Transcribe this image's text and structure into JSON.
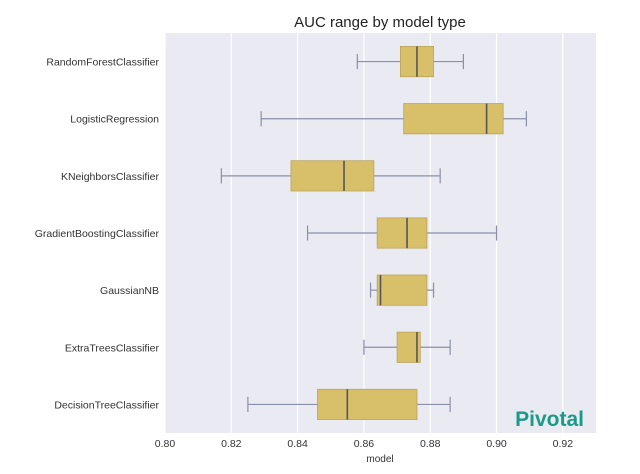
{
  "chart_data": {
    "type": "box",
    "orientation": "horizontal",
    "title": "AUC range by model type",
    "xlabel": "model",
    "ylabel": "",
    "xlim": [
      0.8,
      0.93
    ],
    "xticks": [
      0.8,
      0.82,
      0.84,
      0.86,
      0.88,
      0.9,
      0.92
    ],
    "xtick_labels": [
      "0.80",
      "0.82",
      "0.84",
      "0.86",
      "0.88",
      "0.90",
      "0.92"
    ],
    "grid": true,
    "background": "#eaeaf2",
    "box_color": "#d8c06a",
    "line_color": "#555555",
    "whisker_color": "#8c8fa8",
    "categories": [
      "RandomForestClassifier",
      "LogisticRegression",
      "KNeighborsClassifier",
      "GradientBoostingClassifier",
      "GaussianNB",
      "ExtraTreesClassifier",
      "DecisionTreeClassifier"
    ],
    "boxes": [
      {
        "min": 0.858,
        "q1": 0.871,
        "median": 0.876,
        "q3": 0.881,
        "max": 0.89
      },
      {
        "min": 0.829,
        "q1": 0.872,
        "median": 0.897,
        "q3": 0.902,
        "max": 0.909
      },
      {
        "min": 0.817,
        "q1": 0.838,
        "median": 0.854,
        "q3": 0.863,
        "max": 0.883
      },
      {
        "min": 0.843,
        "q1": 0.864,
        "median": 0.873,
        "q3": 0.879,
        "max": 0.9
      },
      {
        "min": 0.862,
        "q1": 0.864,
        "median": 0.865,
        "q3": 0.879,
        "max": 0.881
      },
      {
        "min": 0.86,
        "q1": 0.87,
        "median": 0.876,
        "q3": 0.877,
        "max": 0.886
      },
      {
        "min": 0.825,
        "q1": 0.846,
        "median": 0.855,
        "q3": 0.876,
        "max": 0.886
      }
    ]
  },
  "brand": {
    "text": "Pivotal",
    "color": "#1a9b87"
  }
}
